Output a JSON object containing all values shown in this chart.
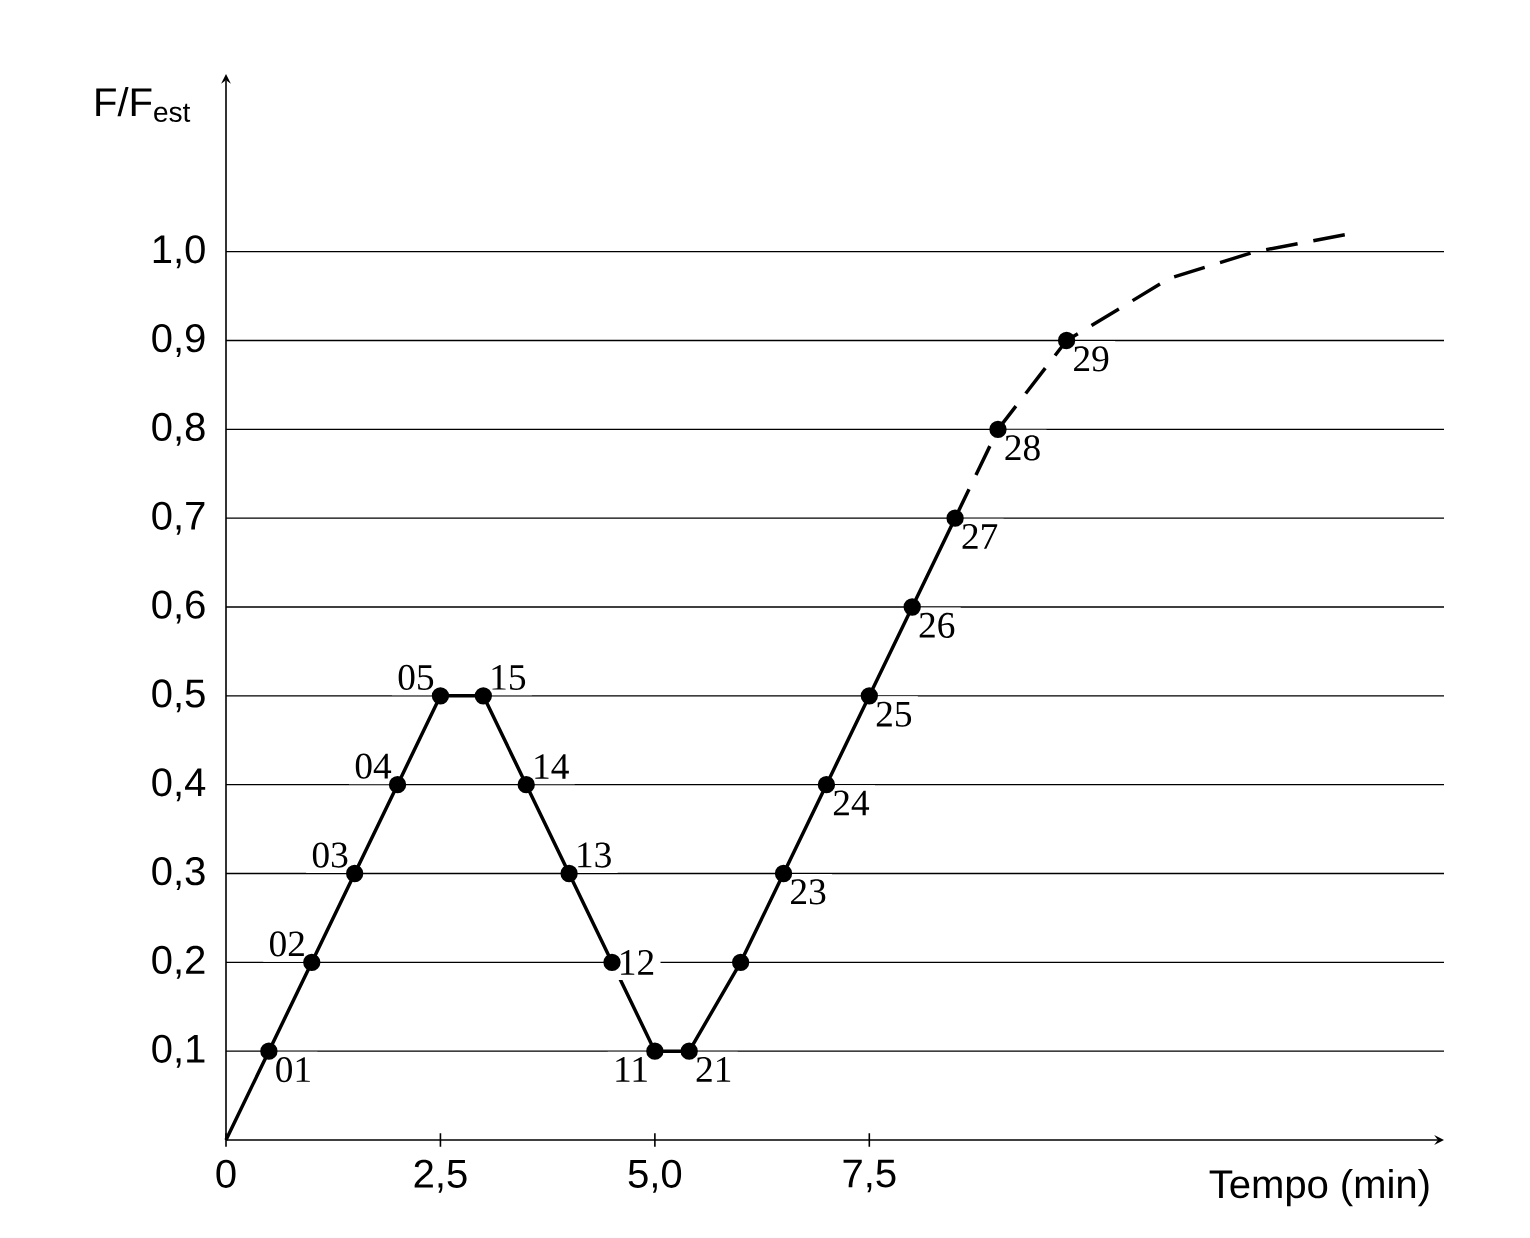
{
  "chart_data": {
    "type": "line",
    "xlabel": "Tempo (min)",
    "ylabel": "F/F$_{est}$",
    "xlim": [
      0,
      14.2
    ],
    "ylim": [
      0,
      1.2
    ],
    "xticks": [
      {
        "value": 0,
        "label": "0"
      },
      {
        "value": 2.5,
        "label": "2,5"
      },
      {
        "value": 5,
        "label": "5,0"
      },
      {
        "value": 7.5,
        "label": "7,5"
      }
    ],
    "yticks": [
      {
        "value": 0.1,
        "label": "0,1"
      },
      {
        "value": 0.2,
        "label": "0,2"
      },
      {
        "value": 0.3,
        "label": "0,3"
      },
      {
        "value": 0.4,
        "label": "0,4"
      },
      {
        "value": 0.5,
        "label": "0,5"
      },
      {
        "value": 0.6,
        "label": "0,6"
      },
      {
        "value": 0.7,
        "label": "0,7"
      },
      {
        "value": 0.8,
        "label": "0,8"
      },
      {
        "value": 0.9,
        "label": "0,9"
      },
      {
        "value": 1.0,
        "label": "1,0"
      }
    ],
    "grid": "y",
    "series": [
      {
        "color": "#000000",
        "line_style": "solid",
        "marker": "none",
        "x": [
          0,
          0.5,
          1.0,
          1.5,
          2.0,
          2.5,
          3.0,
          3.5,
          4.0,
          4.5,
          5.0,
          5.4,
          6.0,
          6.5,
          7.0,
          7.5,
          8.0,
          8.5
        ],
        "values": [
          0,
          0.1,
          0.2,
          0.3,
          0.4,
          0.5,
          0.5,
          0.4,
          0.3,
          0.2,
          0.1,
          0.1,
          0.2,
          0.3,
          0.4,
          0.5,
          0.6,
          0.7
        ]
      },
      {
        "color": "#000000",
        "line_style": "dashed",
        "marker": "none",
        "x": [
          8.5,
          9.0,
          9.8,
          11.0,
          12.0,
          13.1
        ],
        "values": [
          0.7,
          0.8,
          0.9,
          0.97,
          1.0,
          1.02
        ]
      },
      {
        "type": "scatter",
        "color": "#000000",
        "marker": "circle",
        "x": [
          0.5,
          1.0,
          1.5,
          2.0,
          2.5,
          3.0,
          3.5,
          4.0,
          4.5,
          5.0,
          5.4,
          6.0,
          6.5,
          7.0,
          7.5,
          8.0,
          8.5,
          9.0,
          9.8
        ],
        "values": [
          0.1,
          0.2,
          0.3,
          0.4,
          0.5,
          0.5,
          0.4,
          0.3,
          0.2,
          0.1,
          0.1,
          0.2,
          0.3,
          0.4,
          0.5,
          0.6,
          0.7,
          0.8,
          0.9
        ]
      }
    ],
    "annotations": [
      {
        "text": "01",
        "x": 0.5,
        "y": 0.1
      },
      {
        "text": "02",
        "x": 1.0,
        "y": 0.2
      },
      {
        "text": "03",
        "x": 1.5,
        "y": 0.3
      },
      {
        "text": "04",
        "x": 2.0,
        "y": 0.4
      },
      {
        "text": "05",
        "x": 2.5,
        "y": 0.5
      },
      {
        "text": "15",
        "x": 3.0,
        "y": 0.5
      },
      {
        "text": "14",
        "x": 3.5,
        "y": 0.4
      },
      {
        "text": "13",
        "x": 4.0,
        "y": 0.3
      },
      {
        "text": "12",
        "x": 4.5,
        "y": 0.2
      },
      {
        "text": "11",
        "x": 5.0,
        "y": 0.1
      },
      {
        "text": "21",
        "x": 5.4,
        "y": 0.1
      },
      {
        "text": "23",
        "x": 6.5,
        "y": 0.3
      },
      {
        "text": "24",
        "x": 7.0,
        "y": 0.4
      },
      {
        "text": "25",
        "x": 7.5,
        "y": 0.5
      },
      {
        "text": "26",
        "x": 8.0,
        "y": 0.6
      },
      {
        "text": "27",
        "x": 8.5,
        "y": 0.7
      },
      {
        "text": "28",
        "x": 9.0,
        "y": 0.8
      },
      {
        "text": "29",
        "x": 9.8,
        "y": 0.9
      }
    ]
  }
}
